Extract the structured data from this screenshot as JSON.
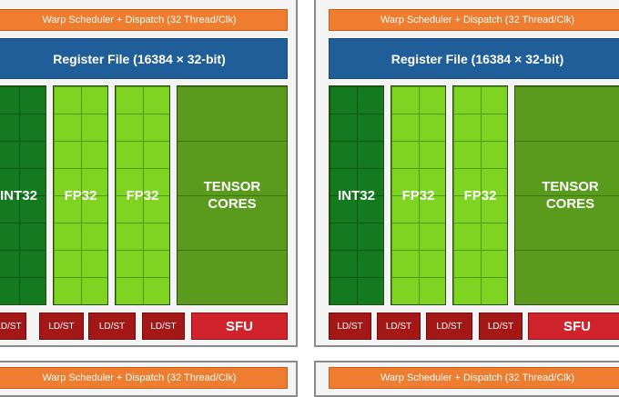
{
  "blocks": [
    {
      "warp_top": "Warp Scheduler + Dispatch (32 Thread/Clk)",
      "register_file": "Register File (16384 × 32-bit)",
      "int32": "INT32",
      "fp32_a": "FP32",
      "fp32_b": "FP32",
      "tensor": "TENSOR\nCORES",
      "ldst": [
        "LD/ST",
        "LD/ST",
        "LD/ST",
        "LD/ST"
      ],
      "sfu": "SFU",
      "warp_bottom": "Warp Scheduler + Dispatch (32 Thread/Clk)"
    },
    {
      "warp_top": "Warp Scheduler + Dispatch (32 Thread/Clk)",
      "register_file": "Register File (16384 × 32-bit)",
      "int32": "INT32",
      "fp32_a": "FP32",
      "fp32_b": "FP32",
      "tensor": "TENSOR\nCORES",
      "ldst": [
        "LD/ST",
        "LD/ST",
        "LD/ST",
        "LD/ST"
      ],
      "sfu": "SFU",
      "warp_bottom": "Warp Scheduler + Dispatch (32 Thread/Clk)"
    }
  ],
  "colors": {
    "warp": "#ee7d2f",
    "register_file": "#1f5e99",
    "int32": "#137a20",
    "fp32": "#7ed421",
    "tensor": "#5a9a1c",
    "ldst": "#a31717",
    "sfu": "#d0232b"
  }
}
